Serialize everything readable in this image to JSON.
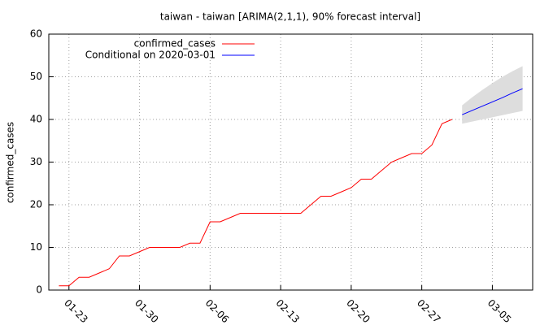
{
  "chart_data": {
    "type": "line",
    "title": "taiwan - taiwan [ARIMA(2,1,1), 90% forecast interval]",
    "y_label": "confirmed_cases",
    "xlim": [
      "01-21",
      "03-09"
    ],
    "xticks": [
      "01-23",
      "01-30",
      "02-06",
      "02-13",
      "02-20",
      "02-27",
      "03-05"
    ],
    "ylim": [
      0,
      60
    ],
    "yticks": [
      0,
      10,
      20,
      30,
      40,
      50,
      60
    ],
    "grid": true,
    "legend": "top-left",
    "series": [
      {
        "name": "confirmed_cases",
        "color": "#ff0000",
        "x": [
          "01-22",
          "01-23",
          "01-24",
          "01-25",
          "01-26",
          "01-27",
          "01-28",
          "01-29",
          "01-30",
          "01-31",
          "02-01",
          "02-02",
          "02-03",
          "02-04",
          "02-05",
          "02-06",
          "02-07",
          "02-08",
          "02-09",
          "02-10",
          "02-11",
          "02-12",
          "02-13",
          "02-14",
          "02-15",
          "02-16",
          "02-17",
          "02-18",
          "02-19",
          "02-20",
          "02-21",
          "02-22",
          "02-23",
          "02-24",
          "02-25",
          "02-26",
          "02-27",
          "02-28",
          "02-29",
          "03-01"
        ],
        "values": [
          1,
          1,
          3,
          3,
          4,
          5,
          8,
          8,
          9,
          10,
          10,
          10,
          10,
          11,
          11,
          16,
          16,
          17,
          18,
          18,
          18,
          18,
          18,
          18,
          18,
          20,
          22,
          22,
          23,
          24,
          26,
          26,
          28,
          30,
          31,
          32,
          32,
          34,
          39,
          40
        ]
      },
      {
        "name": "Conditional on 2020-03-01",
        "color": "#0000ff",
        "x": [
          "03-02",
          "03-03",
          "03-04",
          "03-05",
          "03-06",
          "03-07",
          "03-08"
        ],
        "values": [
          41.1,
          42.1,
          43.1,
          44.1,
          45.1,
          46.2,
          47.2
        ]
      }
    ],
    "interval": {
      "color": "#dddddd",
      "x": [
        "03-02",
        "03-03",
        "03-04",
        "03-05",
        "03-06",
        "03-07",
        "03-08"
      ],
      "lower": [
        39,
        39.5,
        40,
        40.5,
        41,
        41.5,
        42
      ],
      "upper": [
        43.3,
        45.2,
        46.9,
        48.5,
        50,
        51.3,
        52.5
      ]
    }
  }
}
